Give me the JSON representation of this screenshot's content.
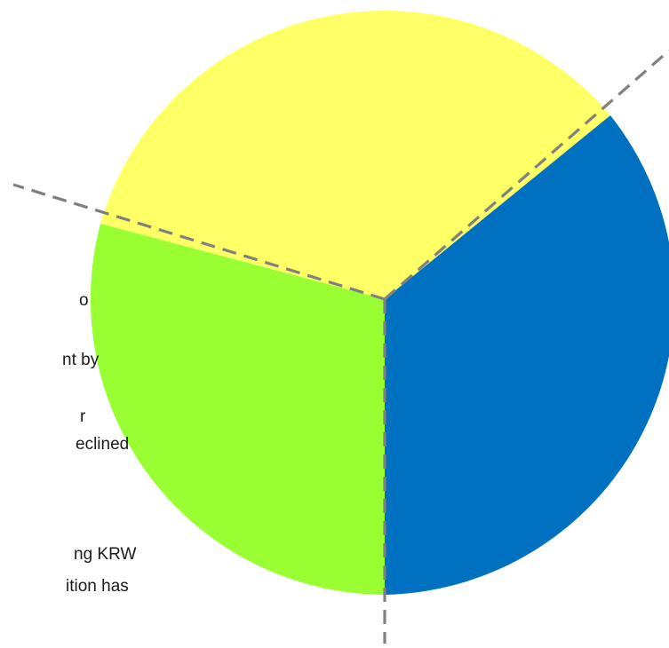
{
  "diagram": {
    "segments": [
      {
        "id": "yellow",
        "color": "#FFFF66"
      },
      {
        "id": "blue",
        "color": "#0070C0"
      },
      {
        "id": "green",
        "color": "#99FF33"
      }
    ],
    "divider_color": "#808080",
    "text_fragments": [
      "o",
      "nt by",
      "r",
      "eclined",
      "ng KRW",
      "ition has"
    ]
  }
}
